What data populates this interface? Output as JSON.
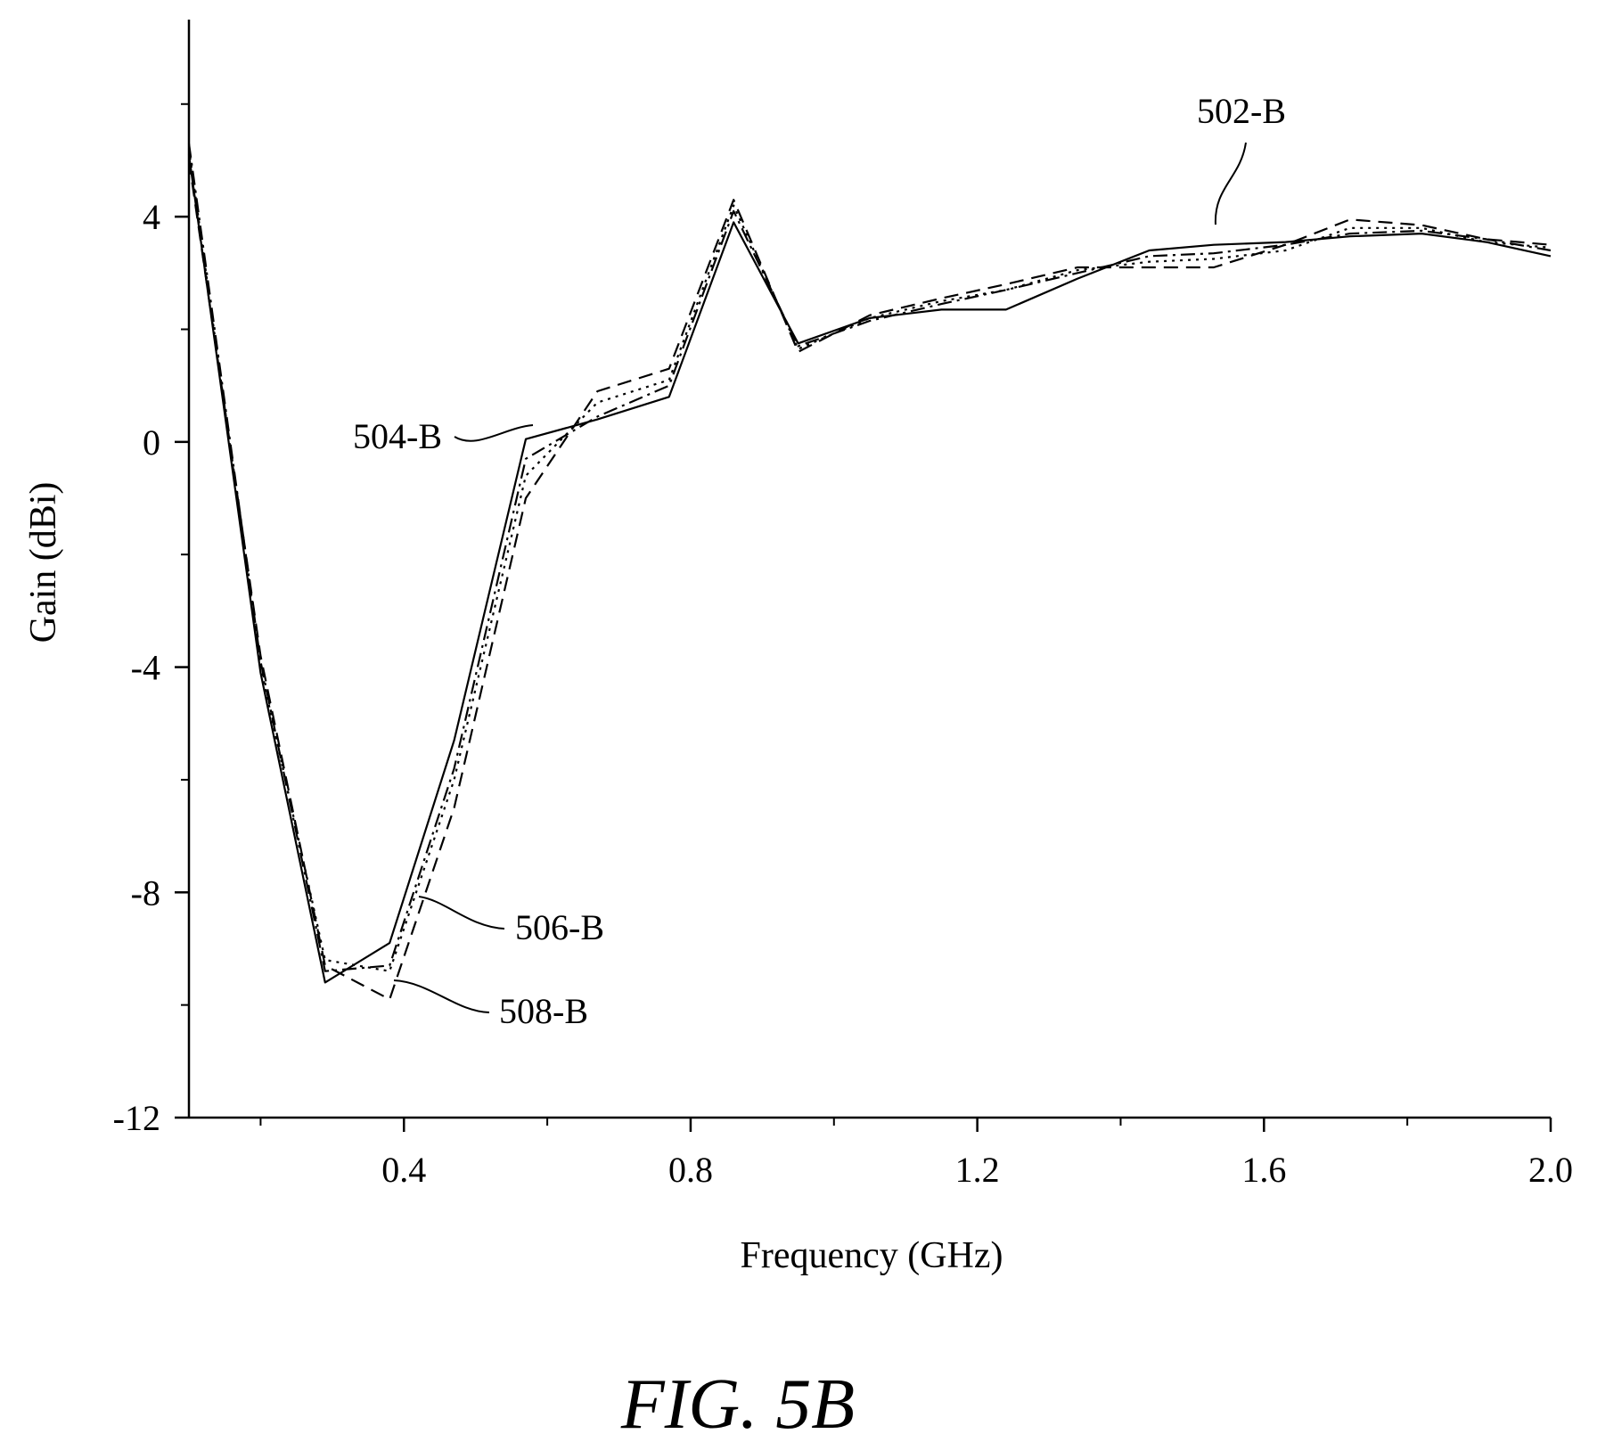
{
  "chart_data": {
    "type": "line",
    "title": "",
    "caption": "FIG. 5B",
    "xlabel": "Frequency (GHz)",
    "ylabel": "Gain (dBi)",
    "xlim": [
      0.1,
      2.0
    ],
    "ylim": [
      -12,
      7.5
    ],
    "x_ticks": [
      {
        "value": 0.4,
        "label": "0.4"
      },
      {
        "value": 0.8,
        "label": "0.8"
      },
      {
        "value": 1.2,
        "label": "1.2"
      },
      {
        "value": 1.6,
        "label": "1.6"
      },
      {
        "value": 2.0,
        "label": "2.0"
      }
    ],
    "x_minor_ticks": [
      0.2,
      0.6,
      1.0,
      1.4,
      1.8
    ],
    "y_ticks": [
      {
        "value": 4,
        "label": "4"
      },
      {
        "value": 0,
        "label": "0"
      },
      {
        "value": -4,
        "label": "-4"
      },
      {
        "value": -8,
        "label": "-8"
      },
      {
        "value": -12,
        "label": "-12"
      }
    ],
    "y_minor_ticks": [
      6,
      2,
      -2,
      -6,
      -10
    ],
    "grid": false,
    "legend": "none",
    "series": [
      {
        "name": "502-B",
        "dash": "solid",
        "x": [
          0.1,
          0.2,
          0.29,
          0.38,
          0.47,
          0.57,
          0.67,
          0.77,
          0.86,
          0.95,
          1.05,
          1.15,
          1.24,
          1.34,
          1.44,
          1.53,
          1.63,
          1.72,
          1.82,
          1.91,
          2.0
        ],
        "y": [
          5.1,
          -4.1,
          -9.6,
          -8.9,
          -5.3,
          0.05,
          0.4,
          0.8,
          3.9,
          1.75,
          2.2,
          2.35,
          2.35,
          2.9,
          3.4,
          3.5,
          3.55,
          3.65,
          3.7,
          3.55,
          3.3
        ]
      },
      {
        "name": "504-B",
        "dash": "dash-dot",
        "x": [
          0.1,
          0.2,
          0.29,
          0.38,
          0.47,
          0.57,
          0.67,
          0.77,
          0.86,
          0.95,
          1.05,
          1.15,
          1.24,
          1.34,
          1.44,
          1.53,
          1.63,
          1.72,
          1.82,
          1.91,
          2.0
        ],
        "y": [
          5.3,
          -3.9,
          -9.4,
          -9.3,
          -5.8,
          -0.3,
          0.45,
          1.0,
          4.1,
          1.7,
          2.15,
          2.45,
          2.7,
          3.0,
          3.3,
          3.35,
          3.5,
          3.7,
          3.75,
          3.6,
          3.4
        ]
      },
      {
        "name": "506-B",
        "dash": "dotted",
        "x": [
          0.1,
          0.2,
          0.29,
          0.38,
          0.47,
          0.57,
          0.67,
          0.77,
          0.86,
          0.95,
          1.05,
          1.15,
          1.24,
          1.34,
          1.44,
          1.53,
          1.63,
          1.72,
          1.82,
          1.91,
          2.0
        ],
        "y": [
          5.2,
          -4.0,
          -9.2,
          -9.4,
          -6.0,
          -0.6,
          0.7,
          1.1,
          4.2,
          1.65,
          2.2,
          2.5,
          2.7,
          3.05,
          3.2,
          3.25,
          3.4,
          3.8,
          3.8,
          3.55,
          3.45
        ]
      },
      {
        "name": "508-B",
        "dash": "dashed",
        "x": [
          0.1,
          0.2,
          0.29,
          0.38,
          0.47,
          0.57,
          0.67,
          0.77,
          0.86,
          0.95,
          1.05,
          1.15,
          1.24,
          1.34,
          1.44,
          1.53,
          1.63,
          1.72,
          1.82,
          1.91,
          2.0
        ],
        "y": [
          5.0,
          -3.8,
          -9.3,
          -9.9,
          -6.5,
          -1.0,
          0.9,
          1.3,
          4.3,
          1.6,
          2.25,
          2.55,
          2.8,
          3.1,
          3.1,
          3.1,
          3.5,
          3.95,
          3.85,
          3.6,
          3.5
        ]
      }
    ]
  }
}
